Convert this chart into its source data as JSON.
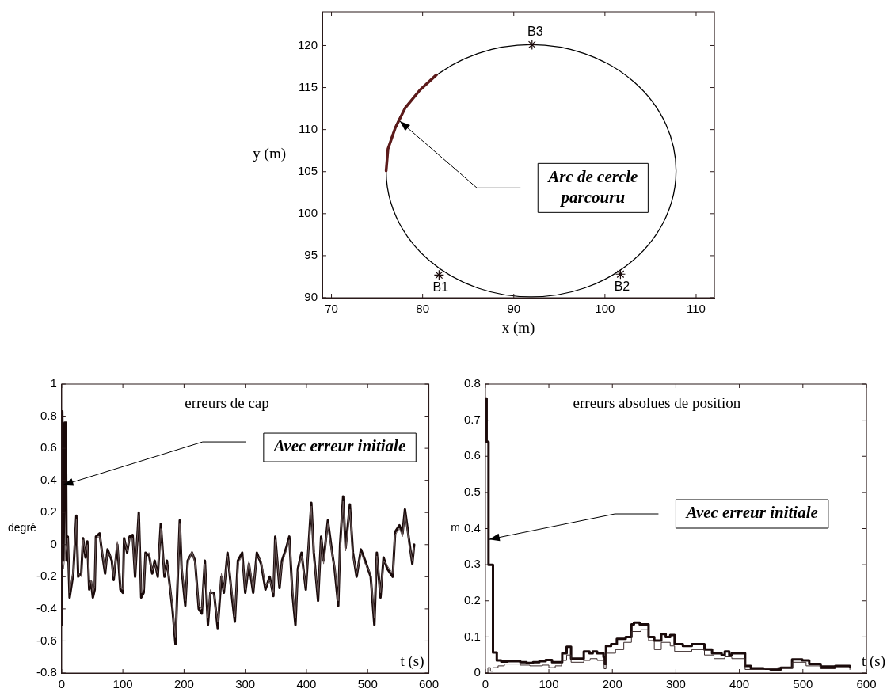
{
  "chart_data": [
    {
      "type": "line",
      "xlabel": "x (m)",
      "ylabel": "y (m)",
      "xlim": [
        69,
        112
      ],
      "xticks": [
        70,
        80,
        90,
        100,
        110
      ],
      "ylim": [
        90,
        124
      ],
      "yticks": [
        90,
        95,
        100,
        105,
        110,
        115,
        120
      ],
      "series": [
        {
          "color": "#5c1a1a",
          "x": [
            76.0,
            76.2,
            77.0,
            78.1,
            79.7,
            81.5
          ],
          "values": [
            105.1,
            107.7,
            110.2,
            112.6,
            114.7,
            116.5
          ]
        },
        {
          "type": "scatter",
          "marker": "cross",
          "color": "#1a0a0a",
          "x": [
            81.8,
            101.7,
            92.0
          ],
          "values": [
            92.7,
            92.8,
            120.1
          ]
        }
      ],
      "annotations": [
        {
          "text": "B1",
          "x": 81.8,
          "y": 92.7
        },
        {
          "text": "B2",
          "x": 101.7,
          "y": 92.8
        },
        {
          "text": "B3",
          "x": 92.0,
          "y": 120.1
        },
        "Arc de cercle parcouru"
      ]
    },
    {
      "type": "line",
      "title": "erreurs de cap",
      "xlabel": "t (s)",
      "ylabel": "degré",
      "xlim": [
        0,
        600
      ],
      "xticks": [
        0,
        100,
        200,
        300,
        400,
        500,
        600
      ],
      "ylim": [
        -0.8,
        1
      ],
      "yticks": [
        -0.8,
        -0.6,
        -0.4,
        -0.2,
        0,
        0.2,
        0.4,
        0.6,
        0.8,
        1
      ],
      "series": [
        {
          "color": "#1a0a0a",
          "x": [
            0,
            1,
            3,
            5,
            7,
            8,
            10,
            13,
            19,
            24,
            27,
            32,
            35,
            39,
            42,
            45,
            48,
            51,
            54,
            56,
            62,
            66,
            71,
            75,
            82,
            85,
            91,
            96,
            100,
            102,
            107,
            111,
            116,
            120,
            126,
            130,
            134,
            137,
            143,
            148,
            152,
            157,
            162,
            168,
            172,
            181,
            186,
            189,
            193,
            196,
            202,
            206,
            213,
            218,
            224,
            229,
            234,
            239,
            243,
            249,
            255,
            261,
            265,
            271,
            279,
            283,
            288,
            295,
            300,
            306,
            313,
            319,
            326,
            333,
            340,
            346,
            349,
            356,
            360,
            367,
            372,
            377,
            382,
            386,
            392,
            399,
            408,
            412,
            419,
            424,
            428,
            435,
            442,
            446,
            452,
            455,
            460,
            464,
            471,
            476,
            482,
            489,
            496,
            505,
            511,
            515,
            521,
            526,
            532,
            541,
            545,
            552,
            557,
            561,
            568,
            573,
            576
          ],
          "values": [
            -0.5,
            0.83,
            -0.1,
            0.76,
            0.76,
            -0.1,
            0.05,
            -0.33,
            -0.18,
            0.18,
            -0.2,
            -0.18,
            0.04,
            -0.08,
            0.02,
            -0.28,
            -0.23,
            -0.33,
            -0.28,
            0.05,
            0.07,
            -0.05,
            -0.18,
            -0.03,
            -0.1,
            -0.22,
            0.0,
            -0.28,
            -0.3,
            0.04,
            -0.05,
            0.05,
            0.06,
            -0.2,
            0.2,
            -0.33,
            -0.3,
            -0.05,
            -0.07,
            -0.18,
            -0.1,
            -0.2,
            0.13,
            -0.2,
            -0.1,
            -0.4,
            -0.62,
            -0.28,
            0.15,
            -0.15,
            -0.38,
            -0.1,
            -0.05,
            -0.1,
            -0.4,
            -0.43,
            -0.1,
            -0.5,
            -0.3,
            -0.3,
            -0.52,
            -0.2,
            -0.3,
            -0.05,
            -0.35,
            -0.48,
            -0.1,
            -0.05,
            -0.3,
            -0.12,
            -0.3,
            -0.05,
            -0.12,
            -0.28,
            -0.2,
            -0.32,
            0.05,
            -0.27,
            -0.1,
            -0.02,
            0.05,
            -0.3,
            -0.5,
            -0.15,
            -0.05,
            -0.28,
            0.26,
            -0.05,
            -0.35,
            0.05,
            -0.1,
            0.15,
            -0.05,
            -0.15,
            -0.38,
            0.0,
            0.3,
            -0.02,
            0.25,
            -0.05,
            -0.2,
            -0.03,
            -0.1,
            -0.2,
            -0.5,
            -0.05,
            -0.33,
            -0.08,
            -0.15,
            -0.2,
            0.08,
            0.12,
            0.07,
            0.22,
            0.02,
            -0.12,
            0.0
          ]
        },
        {
          "color": "#6e5e5e",
          "x": [
            0,
            3,
            6,
            10,
            13,
            19,
            24,
            27,
            32,
            35,
            39,
            42,
            45,
            48,
            51,
            54,
            56,
            62,
            66,
            71,
            75,
            82,
            85,
            91,
            96,
            100,
            102,
            107,
            111,
            116,
            120,
            126,
            130,
            134,
            137,
            143,
            148,
            152,
            157,
            162,
            168,
            172,
            181,
            186,
            189,
            193,
            196,
            202,
            206,
            213,
            218,
            224,
            229,
            234,
            239,
            243,
            249,
            255,
            261,
            265,
            271,
            279,
            283,
            288,
            295,
            300,
            306,
            313,
            319,
            326,
            333,
            340,
            346,
            349,
            356,
            360,
            367,
            372,
            377,
            382,
            386,
            392,
            399,
            408,
            412,
            419,
            424,
            428,
            435,
            442,
            446,
            452,
            455,
            460,
            464,
            471,
            476,
            482,
            489,
            496,
            505,
            511,
            515,
            521,
            526,
            532,
            541,
            545,
            552,
            557,
            561,
            568,
            573,
            576
          ],
          "values": [
            -0.1,
            -0.15,
            -0.05,
            0.04,
            -0.3,
            -0.16,
            0.16,
            -0.18,
            -0.2,
            0.03,
            -0.06,
            0.0,
            -0.26,
            -0.22,
            -0.3,
            -0.26,
            0.04,
            0.05,
            -0.04,
            -0.16,
            -0.05,
            -0.08,
            -0.2,
            0.02,
            -0.26,
            -0.28,
            0.03,
            -0.04,
            0.04,
            0.04,
            -0.18,
            0.18,
            -0.3,
            -0.28,
            -0.06,
            -0.05,
            -0.16,
            -0.12,
            -0.18,
            0.1,
            -0.18,
            -0.12,
            -0.38,
            -0.58,
            -0.26,
            0.13,
            -0.13,
            -0.35,
            -0.12,
            -0.04,
            -0.12,
            -0.38,
            -0.4,
            -0.12,
            -0.46,
            -0.28,
            -0.32,
            -0.48,
            -0.18,
            -0.28,
            -0.07,
            -0.32,
            -0.45,
            -0.12,
            -0.07,
            -0.28,
            -0.1,
            -0.28,
            -0.07,
            -0.1,
            -0.26,
            -0.22,
            -0.3,
            0.03,
            -0.25,
            -0.12,
            -0.04,
            0.03,
            -0.28,
            -0.46,
            -0.17,
            -0.07,
            -0.26,
            0.24,
            -0.07,
            -0.32,
            0.03,
            -0.12,
            0.13,
            -0.07,
            -0.13,
            -0.35,
            -0.02,
            0.27,
            -0.04,
            0.22,
            -0.07,
            -0.18,
            -0.05,
            -0.12,
            -0.18,
            -0.46,
            -0.07,
            -0.3,
            -0.1,
            -0.13,
            -0.18,
            0.06,
            0.1,
            0.05,
            0.2,
            0.0,
            -0.1,
            -0.02
          ]
        }
      ],
      "annotations": [
        "Avec erreur initiale"
      ]
    },
    {
      "type": "step",
      "title": "erreurs absolues de position",
      "xlabel": "t (s)",
      "ylabel": "m",
      "xlim": [
        0,
        600
      ],
      "xticks": [
        0,
        100,
        200,
        300,
        400,
        500,
        600
      ],
      "ylim": [
        0,
        0.8
      ],
      "yticks": [
        0,
        0.1,
        0.2,
        0.3,
        0.4,
        0.5,
        0.6,
        0.7,
        0.8
      ],
      "series": [
        {
          "color": "#1a0a0a",
          "x": [
            0,
            2,
            5,
            12,
            18,
            25,
            35,
            55,
            65,
            75,
            85,
            95,
            105,
            121,
            128,
            135,
            144,
            155,
            164,
            169,
            176,
            186,
            188,
            190,
            198,
            207,
            221,
            230,
            234,
            243,
            257,
            266,
            277,
            284,
            291,
            298,
            311,
            325,
            345,
            357,
            372,
            377,
            384,
            388,
            409,
            418,
            438,
            449,
            465,
            483,
            499,
            510,
            528,
            551,
            574
          ],
          "values": [
            0.76,
            0.64,
            0.3,
            0.057,
            0.035,
            0.032,
            0.033,
            0.03,
            0.028,
            0.03,
            0.033,
            0.036,
            0.03,
            0.055,
            0.073,
            0.04,
            0.04,
            0.06,
            0.055,
            0.06,
            0.055,
            0.045,
            0.025,
            0.075,
            0.08,
            0.095,
            0.1,
            0.135,
            0.14,
            0.135,
            0.1,
            0.09,
            0.108,
            0.1,
            0.105,
            0.08,
            0.075,
            0.08,
            0.065,
            0.055,
            0.05,
            0.06,
            0.05,
            0.055,
            0.02,
            0.013,
            0.012,
            0.01,
            0.015,
            0.038,
            0.035,
            0.025,
            0.018,
            0.02,
            0.018
          ]
        },
        {
          "color": "#3a2a2a",
          "x": [
            0,
            4,
            8,
            12,
            20,
            30,
            55,
            70,
            90,
            100,
            110,
            120,
            128,
            135,
            155,
            165,
            176,
            187,
            190,
            205,
            218,
            230,
            245,
            257,
            266,
            277,
            291,
            298,
            325,
            345,
            360,
            377,
            388,
            409,
            440,
            460,
            483,
            505,
            528,
            551,
            574
          ],
          "values": [
            0.0,
            0.015,
            0.005,
            0.015,
            0.02,
            0.025,
            0.022,
            0.02,
            0.022,
            0.015,
            0.02,
            0.035,
            0.05,
            0.03,
            0.035,
            0.04,
            0.035,
            0.012,
            0.055,
            0.065,
            0.085,
            0.115,
            0.12,
            0.09,
            0.065,
            0.085,
            0.075,
            0.06,
            0.065,
            0.05,
            0.04,
            0.045,
            0.04,
            0.01,
            0.012,
            0.015,
            0.03,
            0.02,
            0.012,
            0.015,
            0.01
          ]
        }
      ],
      "annotations": [
        "Avec erreur initiale"
      ]
    }
  ]
}
